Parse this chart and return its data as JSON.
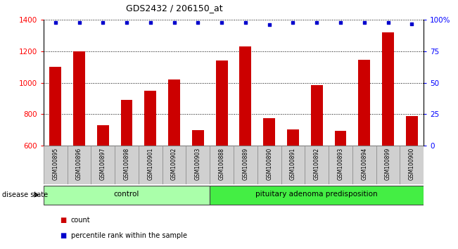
{
  "title": "GDS2432 / 206150_at",
  "samples": [
    "GSM100895",
    "GSM100896",
    "GSM100897",
    "GSM100898",
    "GSM100901",
    "GSM100902",
    "GSM100903",
    "GSM100888",
    "GSM100889",
    "GSM100890",
    "GSM100891",
    "GSM100892",
    "GSM100893",
    "GSM100894",
    "GSM100899",
    "GSM100900"
  ],
  "counts": [
    1100,
    1200,
    730,
    890,
    950,
    1020,
    700,
    1140,
    1230,
    775,
    705,
    985,
    695,
    1145,
    1320,
    790
  ],
  "percentiles": [
    98,
    98,
    98,
    98,
    98,
    98,
    98,
    98,
    98,
    96,
    98,
    98,
    98,
    98,
    98,
    97
  ],
  "ylim_left": [
    600,
    1400
  ],
  "ylim_right": [
    0,
    100
  ],
  "groups": [
    {
      "label": "control",
      "start": 0,
      "end": 7,
      "color": "#aaffaa"
    },
    {
      "label": "pituitary adenoma predisposition",
      "start": 7,
      "end": 16,
      "color": "#44ee44"
    }
  ],
  "left_yticks": [
    600,
    800,
    1000,
    1200,
    1400
  ],
  "right_yticks": [
    0,
    25,
    50,
    75,
    100
  ],
  "right_yticklabels": [
    "0",
    "25",
    "50",
    "75",
    "100%"
  ],
  "bar_color": "#cc0000",
  "dot_color": "#0000cc",
  "tick_bg": "#d0d0d0",
  "plot_bg": "#ffffff",
  "disease_state_label": "disease state",
  "legend_count_label": "count",
  "legend_percentile_label": "percentile rank within the sample"
}
